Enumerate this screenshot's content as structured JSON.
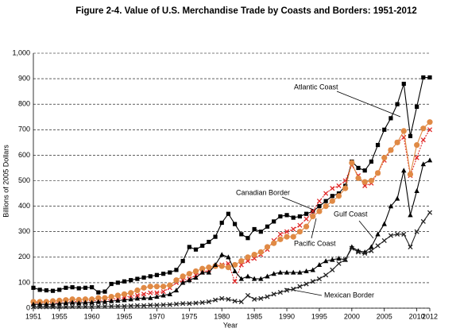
{
  "chart_data": {
    "type": "line",
    "title": "Figure  2-4. Value of U.S. Merchandise Trade by Coasts and Borders: 1951-2012",
    "x_label": "Year",
    "y_label": "Billions of 2005 Dollars",
    "x": [
      1951,
      1952,
      1953,
      1954,
      1955,
      1956,
      1957,
      1958,
      1959,
      1960,
      1961,
      1962,
      1963,
      1964,
      1965,
      1966,
      1967,
      1968,
      1969,
      1970,
      1971,
      1972,
      1973,
      1974,
      1975,
      1976,
      1977,
      1978,
      1979,
      1980,
      1981,
      1982,
      1983,
      1984,
      1985,
      1986,
      1987,
      1988,
      1989,
      1990,
      1991,
      1992,
      1993,
      1994,
      1995,
      1996,
      1997,
      1998,
      1999,
      2000,
      2001,
      2002,
      2003,
      2004,
      2005,
      2006,
      2007,
      2008,
      2009,
      2010,
      2011,
      2012
    ],
    "xlim": [
      1951,
      2012
    ],
    "xticks": [
      1951,
      1955,
      1960,
      1965,
      1970,
      1975,
      1980,
      1985,
      1990,
      1995,
      2000,
      2005,
      2010,
      2012
    ],
    "ylim": [
      0,
      1000
    ],
    "yticks": [
      0,
      100,
      200,
      300,
      400,
      500,
      600,
      700,
      800,
      900,
      {
        "value": 1000,
        "label": "1,000"
      }
    ],
    "grid": true,
    "series": [
      {
        "name": "Atlantic Coast",
        "color": "#000000",
        "marker": "square",
        "values": [
          80,
          72,
          70,
          68,
          72,
          80,
          82,
          78,
          80,
          82,
          62,
          65,
          95,
          100,
          105,
          110,
          115,
          120,
          125,
          130,
          135,
          140,
          150,
          185,
          240,
          230,
          245,
          260,
          280,
          335,
          370,
          330,
          290,
          275,
          310,
          300,
          320,
          340,
          360,
          365,
          355,
          360,
          370,
          380,
          400,
          420,
          440,
          450,
          480,
          575,
          550,
          540,
          575,
          640,
          700,
          745,
          800,
          880,
          675,
          790,
          905,
          905
        ]
      },
      {
        "name": "Canadian Border",
        "color": "#e02828",
        "marker": "x",
        "values": [
          20,
          22,
          22,
          20,
          24,
          26,
          27,
          26,
          28,
          30,
          30,
          32,
          35,
          38,
          42,
          48,
          50,
          55,
          60,
          60,
          65,
          80,
          100,
          110,
          115,
          130,
          140,
          150,
          165,
          170,
          175,
          105,
          170,
          185,
          195,
          210,
          230,
          265,
          290,
          300,
          310,
          325,
          350,
          380,
          420,
          450,
          470,
          480,
          500,
          560,
          520,
          480,
          490,
          530,
          580,
          620,
          650,
          670,
          520,
          590,
          660,
          700
        ]
      },
      {
        "name": "Pacific Coast",
        "color": "#e08a45",
        "marker": "circle",
        "values": [
          25,
          25,
          25,
          28,
          30,
          32,
          35,
          33,
          35,
          35,
          40,
          40,
          45,
          50,
          55,
          60,
          70,
          80,
          85,
          85,
          85,
          90,
          110,
          125,
          135,
          145,
          155,
          160,
          165,
          165,
          160,
          170,
          185,
          200,
          210,
          220,
          240,
          255,
          270,
          280,
          280,
          300,
          320,
          360,
          380,
          400,
          420,
          440,
          470,
          570,
          510,
          495,
          500,
          530,
          590,
          620,
          650,
          695,
          525,
          640,
          705,
          730
        ]
      },
      {
        "name": "Gulf Coast",
        "color": "#000000",
        "marker": "triangle",
        "values": [
          15,
          15,
          15,
          15,
          18,
          20,
          22,
          20,
          22,
          22,
          25,
          25,
          28,
          30,
          32,
          35,
          38,
          40,
          40,
          45,
          50,
          55,
          70,
          100,
          110,
          120,
          140,
          140,
          170,
          210,
          200,
          145,
          115,
          125,
          115,
          115,
          125,
          135,
          140,
          140,
          140,
          140,
          145,
          150,
          170,
          185,
          190,
          195,
          190,
          240,
          225,
          220,
          240,
          290,
          330,
          400,
          430,
          540,
          365,
          460,
          565,
          580
        ]
      },
      {
        "name": "Mexican Border",
        "color": "#222222",
        "marker": "x",
        "values": [
          5,
          5,
          5,
          5,
          5,
          5,
          6,
          6,
          6,
          6,
          7,
          7,
          8,
          8,
          8,
          9,
          10,
          10,
          12,
          12,
          13,
          14,
          16,
          18,
          18,
          20,
          22,
          25,
          32,
          38,
          35,
          28,
          25,
          50,
          35,
          38,
          45,
          55,
          62,
          70,
          75,
          85,
          95,
          105,
          115,
          130,
          150,
          175,
          190,
          235,
          220,
          215,
          225,
          245,
          265,
          285,
          290,
          290,
          240,
          300,
          340,
          375
        ]
      }
    ]
  }
}
